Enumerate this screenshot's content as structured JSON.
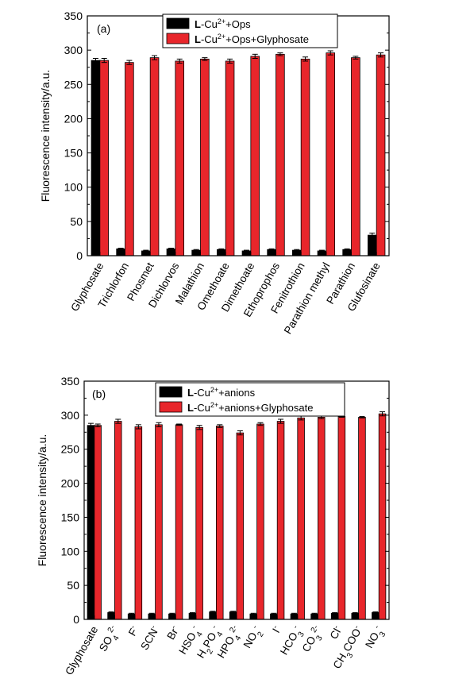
{
  "colors": {
    "black_series": "#000000",
    "red_series": "#e8262b",
    "axis": "#000000"
  },
  "chart_data": [
    {
      "type": "bar",
      "panel_label": "(a)",
      "ylabel": "Fluorescence intensity/a.u.",
      "ylim": [
        0,
        350
      ],
      "yticks": [
        0,
        50,
        100,
        150,
        200,
        250,
        300,
        350
      ],
      "categories": [
        {
          "main": "Glyphosate"
        },
        {
          "main": "Trichlorfon"
        },
        {
          "main": "Phosmet"
        },
        {
          "main": "Dichlorvos"
        },
        {
          "main": "Malathion"
        },
        {
          "main": "Omethoate"
        },
        {
          "main": "Dimethoate"
        },
        {
          "main": "Ethoprophos"
        },
        {
          "main": "Fenitrothion"
        },
        {
          "main": "Parathion methyl"
        },
        {
          "main": "Parathion"
        },
        {
          "main": "Glufosinate"
        }
      ],
      "series": [
        {
          "legend": {
            "pre": "L",
            "mid": "-Cu",
            "sup": "2+",
            "post": "+Ops"
          },
          "values": [
            285,
            10,
            7,
            10,
            8,
            9,
            7,
            9,
            8,
            7,
            9,
            30
          ],
          "errors": [
            3,
            1,
            1,
            1,
            1,
            1,
            1,
            1,
            1,
            1,
            1,
            3
          ]
        },
        {
          "legend": {
            "pre": "L",
            "mid": "-Cu",
            "sup": "2+",
            "post": "+Ops+Glyphosate"
          },
          "values": [
            285,
            282,
            289,
            284,
            287,
            284,
            291,
            294,
            287,
            296,
            289,
            293
          ],
          "errors": [
            3,
            3,
            3,
            3,
            2,
            3,
            3,
            2,
            3,
            3,
            2,
            3
          ]
        }
      ]
    },
    {
      "type": "bar",
      "panel_label": "(b)",
      "ylabel": "Fluorescence intensity/a.u.",
      "ylim": [
        0,
        350
      ],
      "yticks": [
        0,
        50,
        100,
        150,
        200,
        250,
        300,
        350
      ],
      "categories": [
        {
          "main": "Glyphosate"
        },
        {
          "main": "SO",
          "sub": "4",
          "sup": "2-"
        },
        {
          "main": "F",
          "sup": "-"
        },
        {
          "main": "SCN",
          "sup": "-"
        },
        {
          "main": "Br",
          "sup": "-"
        },
        {
          "main": "HSO",
          "sub": "4",
          "sup": "-"
        },
        {
          "main": "H",
          "sub": "2",
          "main2": "PO",
          "sub2": "4",
          "sup": "-"
        },
        {
          "main": "HPO",
          "sub": "4",
          "sup": "2-"
        },
        {
          "main": "NO",
          "sub": "2",
          "sup": "-"
        },
        {
          "main": "I",
          "sup": "-"
        },
        {
          "main": "HCO",
          "sub": "3",
          "sup": "-"
        },
        {
          "main": "CO",
          "sub": "3",
          "sup": "2-"
        },
        {
          "main": "Cl",
          "sup": "-"
        },
        {
          "main": "CH",
          "sub": "3",
          "main2": "COO",
          "sup": "-"
        },
        {
          "main": "NO",
          "sub": "3",
          "sup": "-"
        }
      ],
      "series": [
        {
          "legend": {
            "pre": "L",
            "mid": "-Cu",
            "sup": "2+",
            "post": "+anions"
          },
          "values": [
            285,
            10,
            8,
            8,
            8,
            9,
            11,
            11,
            8,
            8,
            8,
            8,
            9,
            9,
            10
          ],
          "errors": [
            3,
            1,
            1,
            1,
            1,
            1,
            1,
            1,
            1,
            1,
            1,
            1,
            1,
            1,
            1
          ]
        },
        {
          "legend": {
            "pre": "L",
            "mid": "-Cu",
            "sup": "2+",
            "post": "+anions+Glyphosate"
          },
          "values": [
            285,
            291,
            283,
            286,
            286,
            282,
            284,
            274,
            287,
            291,
            296,
            297,
            298,
            297,
            302
          ],
          "errors": [
            2,
            3,
            3,
            3,
            1,
            3,
            2,
            3,
            2,
            3,
            3,
            2,
            1,
            1,
            3
          ]
        }
      ]
    }
  ]
}
